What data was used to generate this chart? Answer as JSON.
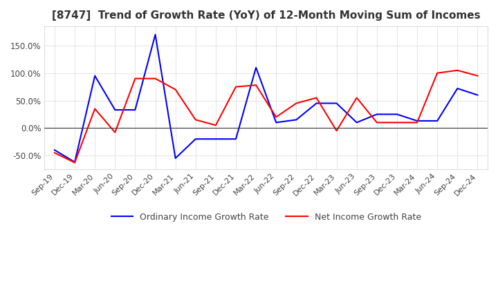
{
  "title": "[8747]  Trend of Growth Rate (YoY) of 12-Month Moving Sum of Incomes",
  "title_fontsize": 11,
  "ylim": [
    -75,
    185
  ],
  "yticks": [
    -50.0,
    0.0,
    50.0,
    100.0,
    150.0
  ],
  "background_color": "#ffffff",
  "grid_color": "#aaaaaa",
  "legend_labels": [
    "Ordinary Income Growth Rate",
    "Net Income Growth Rate"
  ],
  "legend_colors": [
    "#0000ff",
    "#ff0000"
  ],
  "x_labels": [
    "Sep-19",
    "Dec-19",
    "Mar-20",
    "Jun-20",
    "Sep-20",
    "Dec-20",
    "Mar-21",
    "Jun-21",
    "Sep-21",
    "Dec-21",
    "Mar-22",
    "Jun-22",
    "Sep-22",
    "Dec-22",
    "Mar-23",
    "Jun-23",
    "Sep-23",
    "Dec-23",
    "Mar-24",
    "Jun-24",
    "Sep-24",
    "Dec-24"
  ],
  "ordinary_income": [
    -40,
    -62,
    95,
    33,
    33,
    170,
    -55,
    -20,
    -20,
    -20,
    110,
    10,
    15,
    45,
    45,
    10,
    25,
    25,
    13,
    13,
    72,
    60
  ],
  "net_income": [
    -45,
    -63,
    35,
    -8,
    90,
    90,
    70,
    15,
    5,
    75,
    78,
    20,
    45,
    55,
    -5,
    55,
    10,
    10,
    10,
    100,
    105,
    95
  ]
}
